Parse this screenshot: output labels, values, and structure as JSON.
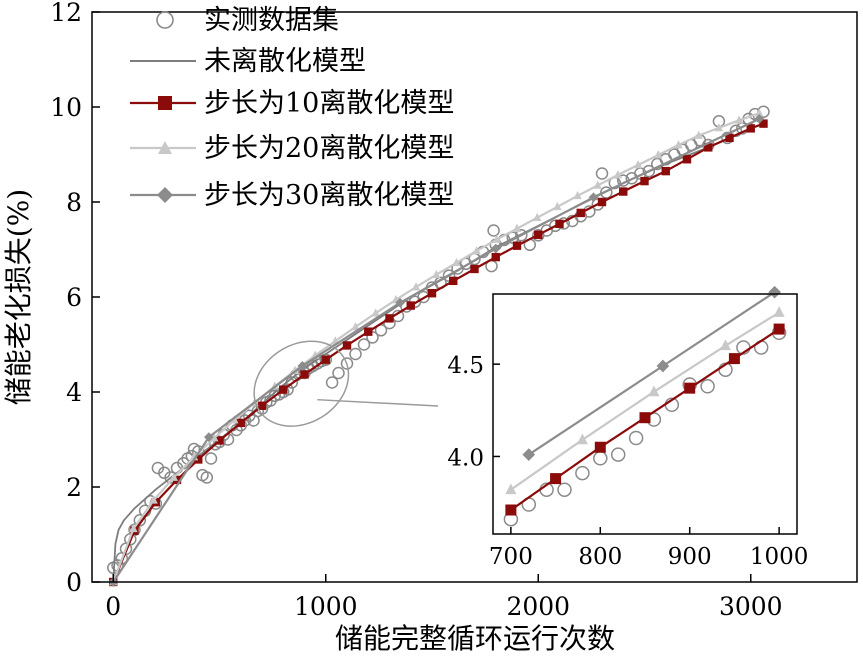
{
  "chart_data": {
    "type": "line",
    "xlabel": "储能完整循环运行次数",
    "ylabel": "储能老化损失(%)",
    "xlim": [
      -100,
      3500
    ],
    "ylim": [
      0,
      12
    ],
    "xticks": [
      0,
      1000,
      2000,
      3000
    ],
    "yticks": [
      0,
      2,
      4,
      6,
      8,
      10,
      12
    ],
    "legend_position": "top-left",
    "colors": {
      "measured": "#8a8a8a",
      "continuous": "#7d7d7d",
      "step10": "#8b0a0a",
      "step20": "#c8c8c8",
      "step30": "#8c8c8c",
      "zoom_marker": "#9a9a9a"
    },
    "series": [
      {
        "name": "实测数据集",
        "style": "open-circle",
        "x": [
          0,
          20,
          40,
          60,
          80,
          100,
          125,
          150,
          175,
          200,
          210,
          240,
          270,
          300,
          330,
          350,
          370,
          380,
          400,
          420,
          440,
          460,
          480,
          500,
          520,
          540,
          560,
          580,
          600,
          620,
          640,
          660,
          680,
          700,
          720,
          740,
          760,
          780,
          800,
          820,
          840,
          860,
          880,
          900,
          920,
          940,
          960,
          980,
          1000,
          1030,
          1060,
          1100,
          1140,
          1180,
          1220,
          1260,
          1300,
          1340,
          1380,
          1420,
          1460,
          1500,
          1540,
          1580,
          1620,
          1660,
          1700,
          1740,
          1780,
          1790,
          1800,
          1840,
          1880,
          1920,
          1960,
          2000,
          2040,
          2080,
          2120,
          2160,
          2200,
          2240,
          2280,
          2300,
          2320,
          2360,
          2400,
          2440,
          2480,
          2520,
          2560,
          2600,
          2640,
          2680,
          2720,
          2760,
          2800,
          2850,
          2890,
          2930,
          2960,
          2990,
          3020,
          3060
        ],
        "y": [
          0.3,
          0.35,
          0.5,
          0.7,
          0.9,
          1.1,
          1.3,
          1.5,
          1.7,
          1.65,
          2.4,
          2.3,
          2.2,
          2.4,
          2.5,
          2.6,
          2.65,
          2.8,
          2.75,
          2.25,
          2.2,
          2.6,
          2.9,
          2.95,
          3.1,
          3.0,
          3.3,
          3.2,
          3.3,
          3.4,
          3.5,
          3.4,
          3.6,
          3.65,
          3.78,
          3.82,
          3.92,
          3.95,
          4.0,
          4.05,
          4.2,
          4.35,
          4.4,
          4.4,
          4.5,
          4.55,
          4.6,
          4.65,
          4.68,
          4.2,
          4.4,
          4.6,
          4.8,
          5.0,
          5.15,
          5.3,
          5.45,
          5.6,
          5.8,
          5.9,
          6.0,
          6.2,
          6.3,
          6.45,
          6.6,
          6.7,
          6.8,
          6.95,
          6.65,
          7.4,
          7.1,
          7.2,
          7.25,
          7.3,
          7.1,
          7.3,
          7.4,
          7.5,
          7.55,
          7.6,
          7.7,
          7.8,
          7.95,
          8.6,
          8.2,
          8.4,
          8.45,
          8.5,
          8.6,
          8.65,
          8.8,
          8.9,
          9.0,
          9.1,
          9.2,
          9.3,
          9.2,
          9.7,
          9.35,
          9.5,
          9.55,
          9.75,
          9.85,
          9.9
        ]
      },
      {
        "name": "未离散化模型",
        "style": "line",
        "x": [
          0,
          10,
          25,
          50,
          100,
          200,
          300,
          400,
          500,
          600,
          700,
          800,
          900,
          1000,
          1200,
          1400,
          1600,
          1800,
          2000,
          2200,
          2400,
          2600,
          2800,
          3000,
          3060
        ],
        "y": [
          0,
          0.8,
          1.1,
          1.3,
          1.55,
          1.95,
          2.3,
          2.65,
          3.0,
          3.35,
          3.75,
          4.15,
          4.5,
          4.8,
          5.4,
          6.0,
          6.5,
          7.05,
          7.5,
          7.95,
          8.4,
          8.8,
          9.15,
          9.55,
          9.65
        ]
      },
      {
        "name": "步长为10离散化模型",
        "style": "line-square",
        "x": [
          0,
          100,
          200,
          300,
          400,
          500,
          600,
          700,
          800,
          900,
          1000,
          1100,
          1200,
          1300,
          1400,
          1500,
          1600,
          1700,
          1800,
          1900,
          2000,
          2100,
          2200,
          2300,
          2400,
          2500,
          2600,
          2700,
          2800,
          2900,
          3000,
          3060
        ],
        "y": [
          0,
          1.08,
          1.68,
          2.15,
          2.58,
          2.98,
          3.35,
          3.71,
          4.05,
          4.37,
          4.68,
          4.98,
          5.27,
          5.55,
          5.82,
          6.08,
          6.34,
          6.59,
          6.84,
          7.08,
          7.31,
          7.54,
          7.77,
          8.0,
          8.22,
          8.44,
          8.65,
          8.9,
          9.15,
          9.35,
          9.55,
          9.65
        ]
      },
      {
        "name": "步长为20离散化模型",
        "style": "line-triangle",
        "x": [
          0,
          95,
          190,
          285,
          380,
          475,
          570,
          665,
          760,
          855,
          950,
          1045,
          1140,
          1235,
          1330,
          1425,
          1520,
          1615,
          1710,
          1805,
          1900,
          1995,
          2090,
          2185,
          2280,
          2375,
          2470,
          2565,
          2660,
          2755,
          2850,
          2945,
          3040
        ],
        "y": [
          0,
          1.12,
          1.72,
          2.2,
          2.63,
          3.03,
          3.41,
          3.77,
          4.12,
          4.45,
          4.77,
          5.07,
          5.37,
          5.66,
          5.94,
          6.21,
          6.47,
          6.72,
          6.97,
          7.21,
          7.44,
          7.67,
          7.9,
          8.13,
          8.35,
          8.57,
          8.78,
          8.99,
          9.2,
          9.4,
          9.56,
          9.72,
          9.87
        ]
      },
      {
        "name": "步长为30离散化模型",
        "style": "line-diamond",
        "x": [
          0,
          450,
          890,
          1350,
          1800,
          2260,
          3040
        ],
        "y": [
          0,
          3.05,
          4.55,
          5.88,
          7.02,
          8.1,
          9.75
        ]
      }
    ],
    "zoom_ellipse": {
      "x_range": [
        650,
        1120
      ],
      "y_range": [
        3.35,
        5.0
      ]
    },
    "inset": {
      "xlim": [
        680,
        1020
      ],
      "ylim": [
        3.58,
        4.88
      ],
      "xticks": [
        700,
        800,
        900,
        1000
      ],
      "yticks": [
        4.0,
        4.5
      ],
      "ytick_labels": [
        "4.0",
        "4.5"
      ],
      "series": [
        {
          "name": "实测数据集",
          "style": "open-circle",
          "x": [
            700,
            720,
            740,
            760,
            780,
            800,
            820,
            840,
            860,
            880,
            900,
            920,
            940,
            960,
            980,
            1000
          ],
          "y": [
            3.66,
            3.74,
            3.82,
            3.82,
            3.91,
            3.99,
            4.01,
            4.1,
            4.2,
            4.28,
            4.39,
            4.38,
            4.47,
            4.59,
            4.59,
            4.67
          ]
        },
        {
          "name": "步长为10离散化模型",
          "style": "line-square",
          "x": [
            700,
            750,
            800,
            850,
            900,
            950,
            1000
          ],
          "y": [
            3.71,
            3.88,
            4.05,
            4.21,
            4.37,
            4.53,
            4.69
          ]
        },
        {
          "name": "步长为20离散化模型",
          "style": "line-triangle",
          "x": [
            700,
            780,
            860,
            940,
            1000
          ],
          "y": [
            3.82,
            4.09,
            4.35,
            4.6,
            4.78
          ]
        },
        {
          "name": "步长为30离散化模型",
          "style": "line-diamond",
          "x": [
            720,
            870,
            995
          ],
          "y": [
            4.01,
            4.49,
            4.89
          ]
        }
      ]
    }
  }
}
